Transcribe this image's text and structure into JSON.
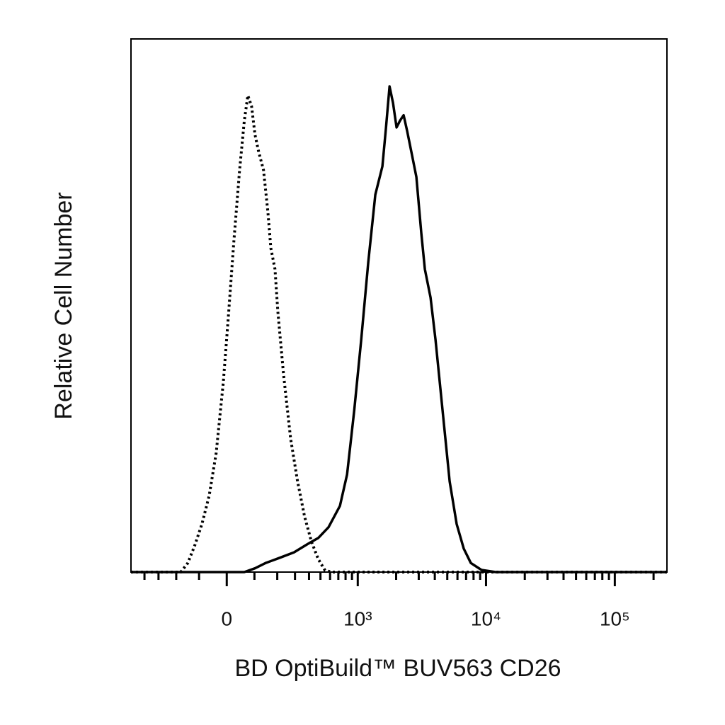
{
  "chart_data": {
    "type": "line",
    "xlabel": "BD OptiBuild™ BUV563 CD26",
    "ylabel": "Relative Cell Number",
    "xscale": "biexponential",
    "xlim": [
      -520,
      254000
    ],
    "ylim": [
      0,
      100
    ],
    "xticks": [
      0,
      {
        "value": 1000,
        "label": "10³"
      },
      {
        "value": 10000,
        "label": "10⁴"
      },
      {
        "value": 100000,
        "label": "10⁵"
      }
    ],
    "xminorticks": [
      -400,
      -300,
      -200,
      -100,
      100,
      200,
      300,
      400,
      500,
      600,
      700,
      800,
      900,
      2000,
      3000,
      4000,
      5000,
      6000,
      7000,
      8000,
      9000,
      20000,
      30000,
      40000,
      50000,
      60000,
      70000,
      80000,
      90000,
      200000
    ],
    "series": [
      {
        "color": "#000000",
        "line_style": "dotted",
        "x": [
          -520,
          -178,
          -146,
          -117,
          -89,
          -62,
          -37,
          -12,
          5,
          25,
          45,
          62,
          75,
          89,
          102,
          117,
          137,
          156,
          169,
          189,
          203,
          233,
          273,
          317,
          366,
          420,
          480,
          546,
          621,
          254000
        ],
        "values": [
          0,
          0,
          1.7,
          5.0,
          9.0,
          14.3,
          22.3,
          35.6,
          47.5,
          62.2,
          75.4,
          84.7,
          89.4,
          87.4,
          82.1,
          78.8,
          75.4,
          67.5,
          60.8,
          56.8,
          48.9,
          36.9,
          25.0,
          17.0,
          10.4,
          5.7,
          2.4,
          0.3,
          0,
          0
        ]
      },
      {
        "color": "#000000",
        "line_style": "solid",
        "x": [
          -520,
          62,
          102,
          146,
          214,
          294,
          392,
          480,
          583,
          721,
          822,
          937,
          1065,
          1211,
          1375,
          1563,
          1666,
          1776,
          1892,
          2016,
          2147,
          2287,
          2438,
          2665,
          2875,
          3143,
          3350,
          3706,
          4050,
          4598,
          5218,
          5917,
          6712,
          7624,
          9215,
          11873,
          254000
        ],
        "values": [
          0,
          0,
          0.7,
          1.7,
          2.7,
          3.7,
          5.3,
          6.4,
          8.4,
          12.4,
          18.3,
          30.3,
          43.6,
          58.2,
          70.8,
          76.1,
          83.4,
          91.1,
          88.0,
          83.4,
          84.7,
          85.7,
          82.7,
          78.1,
          74.1,
          63.5,
          56.8,
          51.5,
          43.6,
          30.3,
          17.0,
          9.0,
          4.4,
          1.7,
          0.4,
          0,
          0
        ]
      }
    ]
  }
}
